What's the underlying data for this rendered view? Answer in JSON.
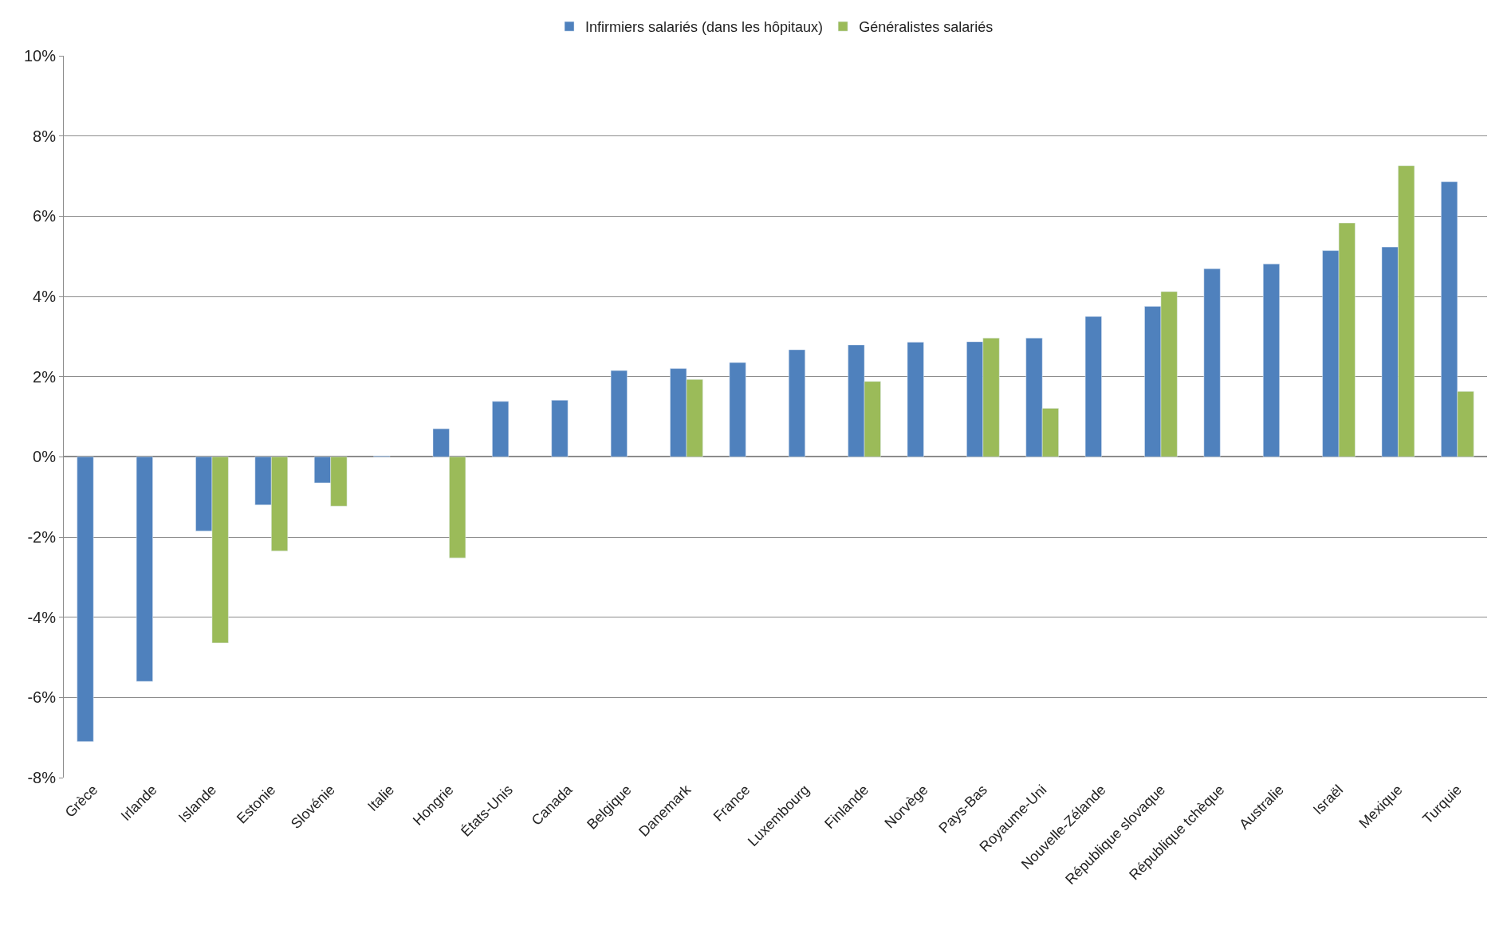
{
  "chart_data": {
    "type": "bar",
    "categories": [
      "Grèce",
      "Irlande",
      "Islande",
      "Estonie",
      "Slovénie",
      "Italie",
      "Hongrie",
      "États-Unis",
      "Canada",
      "Belgique",
      "Danemark",
      "France",
      "Luxembourg",
      "Finlande",
      "Norvège",
      "Pays-Bas",
      "Royaume-Uni",
      "Nouvelle-Zélande",
      "République slovaque",
      "République tchèque",
      "Australie",
      "Israël",
      "Mexique",
      "Turquie"
    ],
    "series": [
      {
        "name": "Infirmiers salariés (dans les hôpitaux)",
        "color": "#4f81bd",
        "values": [
          -7.1,
          -5.6,
          -1.85,
          -1.2,
          -0.65,
          0.02,
          0.7,
          1.38,
          1.41,
          2.15,
          2.2,
          2.35,
          2.67,
          2.79,
          2.86,
          2.87,
          2.96,
          3.5,
          3.75,
          4.69,
          4.81,
          5.14,
          5.23,
          6.86
        ]
      },
      {
        "name": "Généralistes salariés",
        "color": "#9bbb59",
        "values": [
          null,
          null,
          -4.64,
          -2.35,
          -1.23,
          null,
          -2.52,
          null,
          null,
          null,
          1.93,
          null,
          null,
          1.88,
          null,
          2.96,
          1.21,
          null,
          4.12,
          null,
          null,
          5.83,
          7.26,
          1.63
        ]
      }
    ],
    "ylim": [
      -8,
      10
    ],
    "yticks": [
      {
        "value": -8,
        "label": "-8%"
      },
      {
        "value": -6,
        "label": "-6%"
      },
      {
        "value": -4,
        "label": "-4%"
      },
      {
        "value": -2,
        "label": "-2%"
      },
      {
        "value": 0,
        "label": "0%"
      },
      {
        "value": 2,
        "label": "2%"
      },
      {
        "value": 4,
        "label": "4%"
      },
      {
        "value": 6,
        "label": "6%"
      },
      {
        "value": 8,
        "label": "8%"
      },
      {
        "value": 10,
        "label": "10%"
      }
    ],
    "grid": "y",
    "legend": "top"
  }
}
